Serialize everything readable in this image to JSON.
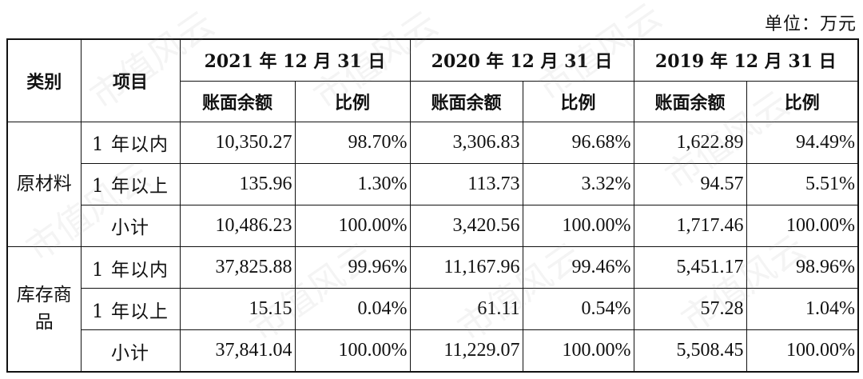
{
  "unit_note": "单位：万元",
  "headers": {
    "category": "类别",
    "item": "项目",
    "periods": [
      {
        "date": "2021 年 12 月 31 日",
        "balance": "账面余额",
        "ratio": "比例"
      },
      {
        "date": "2020 年 12 月 31 日",
        "balance": "账面余额",
        "ratio": "比例"
      },
      {
        "date": "2019 年 12 月 31 日",
        "balance": "账面余额",
        "ratio": "比例"
      }
    ]
  },
  "groups": [
    {
      "category": "原材料",
      "rows": [
        {
          "item": "1 年以内",
          "values": [
            "10,350.27",
            "98.70%",
            "3,306.83",
            "96.68%",
            "1,622.89",
            "94.49%"
          ]
        },
        {
          "item": "1 年以上",
          "values": [
            "135.96",
            "1.30%",
            "113.73",
            "3.32%",
            "94.57",
            "5.51%"
          ]
        },
        {
          "item": "小计",
          "values": [
            "10,486.23",
            "100.00%",
            "3,420.56",
            "100.00%",
            "1,717.46",
            "100.00%"
          ]
        }
      ]
    },
    {
      "category": "库存商品",
      "rows": [
        {
          "item": "1 年以内",
          "values": [
            "37,825.88",
            "99.96%",
            "11,167.96",
            "99.46%",
            "5,451.17",
            "98.96%"
          ]
        },
        {
          "item": "1 年以上",
          "values": [
            "15.15",
            "0.04%",
            "61.11",
            "0.54%",
            "57.28",
            "1.04%"
          ]
        },
        {
          "item": "小计",
          "values": [
            "37,841.04",
            "100.00%",
            "11,229.07",
            "100.00%",
            "5,508.45",
            "100.00%"
          ]
        }
      ]
    }
  ],
  "watermark_text": "市值风云"
}
